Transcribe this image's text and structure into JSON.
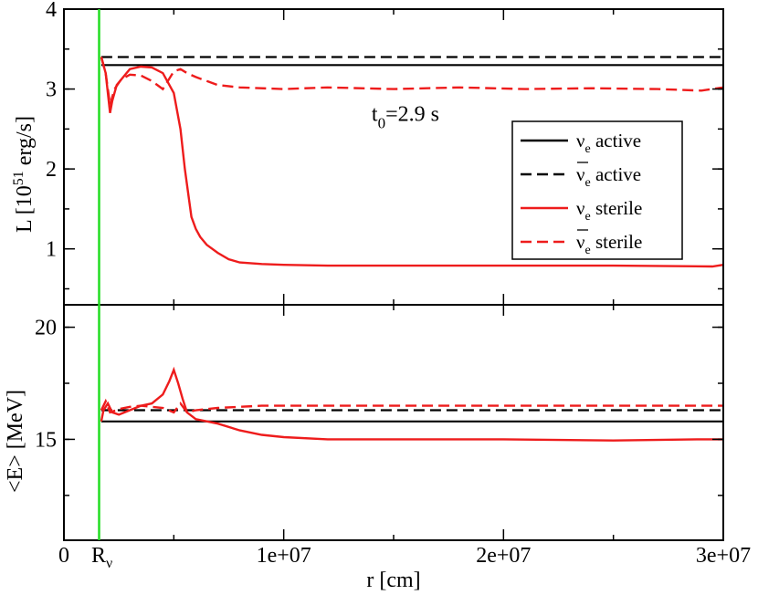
{
  "chart_data": [
    {
      "type": "line",
      "panel": "top",
      "ylabel_main": "L [10",
      "ylabel_sup": "51",
      "ylabel_tail": " erg/s]",
      "xlim": [
        0,
        30000000
      ],
      "ylim": [
        0.3,
        4
      ],
      "yticks": [
        "1",
        "2",
        "3",
        "4"
      ],
      "annotation": {
        "main": "t",
        "sub": "0",
        "tail": "=2.9 s",
        "x": 14000000,
        "y": 2.6
      },
      "legend_position": "right",
      "legend": [
        {
          "nu": "ν",
          "sub": "e",
          "text": " active",
          "bar": false,
          "style": "solid",
          "color": "#000000"
        },
        {
          "nu": "ν",
          "sub": "e",
          "text": " active",
          "bar": true,
          "style": "dashed",
          "color": "#000000"
        },
        {
          "nu": "ν",
          "sub": "e",
          "text": " sterile",
          "bar": false,
          "style": "solid",
          "color": "#ee1c1c"
        },
        {
          "nu": "ν",
          "sub": "e",
          "text": " sterile",
          "bar": true,
          "style": "dashed",
          "color": "#ee1c1c"
        }
      ],
      "series": [
        {
          "name": "νe active",
          "color": "#000000",
          "dash": false,
          "x": [
            1700000,
            30000000
          ],
          "y": [
            3.3,
            3.3
          ]
        },
        {
          "name": "ν̄e active",
          "color": "#000000",
          "dash": true,
          "x": [
            1700000,
            30000000
          ],
          "y": [
            3.4,
            3.4
          ]
        },
        {
          "name": "νe sterile",
          "color": "#ee1c1c",
          "dash": false,
          "x": [
            1700000,
            1900000,
            2100000,
            2200000,
            2400000,
            2700000,
            3000000,
            3500000,
            4000000,
            4500000,
            5000000,
            5300000,
            5500000,
            5700000,
            5800000,
            6000000,
            6200000,
            6500000,
            7000000,
            7500000,
            8000000,
            9000000,
            10000000,
            12000000,
            15000000,
            20000000,
            25000000,
            29500000,
            30000000
          ],
          "y": [
            3.4,
            3.2,
            2.7,
            2.85,
            3.05,
            3.15,
            3.25,
            3.28,
            3.27,
            3.2,
            2.95,
            2.5,
            2.0,
            1.6,
            1.4,
            1.25,
            1.15,
            1.05,
            0.95,
            0.87,
            0.83,
            0.81,
            0.8,
            0.79,
            0.79,
            0.79,
            0.79,
            0.78,
            0.8
          ]
        },
        {
          "name": "ν̄e sterile",
          "color": "#ee1c1c",
          "dash": true,
          "x": [
            1700000,
            1900000,
            2100000,
            2300000,
            2600000,
            3000000,
            3500000,
            4000000,
            4500000,
            5000000,
            5300000,
            5600000,
            6000000,
            6500000,
            7000000,
            8000000,
            10000000,
            12000000,
            15000000,
            18000000,
            21000000,
            24000000,
            27000000,
            29000000,
            30000000
          ],
          "y": [
            3.4,
            3.2,
            2.8,
            3.0,
            3.12,
            3.18,
            3.17,
            3.1,
            3.0,
            3.22,
            3.25,
            3.2,
            3.15,
            3.1,
            3.05,
            3.02,
            3.0,
            3.02,
            3.0,
            3.02,
            3.0,
            3.01,
            3.0,
            2.98,
            3.02
          ]
        }
      ]
    },
    {
      "type": "line",
      "panel": "bottom",
      "ylabel": "<E> [MeV]",
      "xlabel": "r [cm]",
      "xlim": [
        0,
        30000000
      ],
      "ylim": [
        10.5,
        21
      ],
      "yticks": [
        "15",
        "20"
      ],
      "xticks": [
        "0",
        "1e+07",
        "2e+07",
        "3e+07"
      ],
      "x_marker_label": {
        "main": "R",
        "sub": "ν"
      },
      "vline": {
        "x": 1600000,
        "color": "#22dd22"
      },
      "series": [
        {
          "name": "νe active",
          "color": "#000000",
          "dash": false,
          "x": [
            1700000,
            30000000
          ],
          "y": [
            15.8,
            15.8
          ]
        },
        {
          "name": "ν̄e active",
          "color": "#000000",
          "dash": true,
          "x": [
            1700000,
            30000000
          ],
          "y": [
            16.3,
            16.3
          ]
        },
        {
          "name": "νe sterile",
          "color": "#ee1c1c",
          "dash": false,
          "x": [
            1700000,
            1800000,
            2000000,
            2200000,
            2500000,
            3000000,
            3500000,
            4000000,
            4500000,
            4800000,
            5000000,
            5200000,
            5400000,
            5600000,
            6000000,
            7000000,
            8000000,
            9000000,
            10000000,
            12000000,
            15000000,
            20000000,
            25000000,
            29000000,
            30000000
          ],
          "y": [
            15.8,
            16.3,
            16.6,
            16.2,
            16.1,
            16.3,
            16.5,
            16.6,
            17.0,
            17.6,
            18.1,
            17.5,
            16.8,
            16.2,
            15.9,
            15.7,
            15.4,
            15.2,
            15.1,
            15.0,
            15.0,
            15.0,
            14.95,
            15.0,
            15.0
          ]
        },
        {
          "name": "ν̄e sterile",
          "color": "#ee1c1c",
          "dash": true,
          "x": [
            1700000,
            1900000,
            2100000,
            2500000,
            3000000,
            3500000,
            4000000,
            4500000,
            5000000,
            5300000,
            5600000,
            6000000,
            7000000,
            8000000,
            9000000,
            10000000,
            15000000,
            20000000,
            25000000,
            30000000
          ],
          "y": [
            16.3,
            16.7,
            16.2,
            16.35,
            16.45,
            16.5,
            16.45,
            16.4,
            16.2,
            16.6,
            16.2,
            16.3,
            16.4,
            16.45,
            16.5,
            16.5,
            16.5,
            16.5,
            16.5,
            16.5
          ]
        }
      ]
    }
  ]
}
